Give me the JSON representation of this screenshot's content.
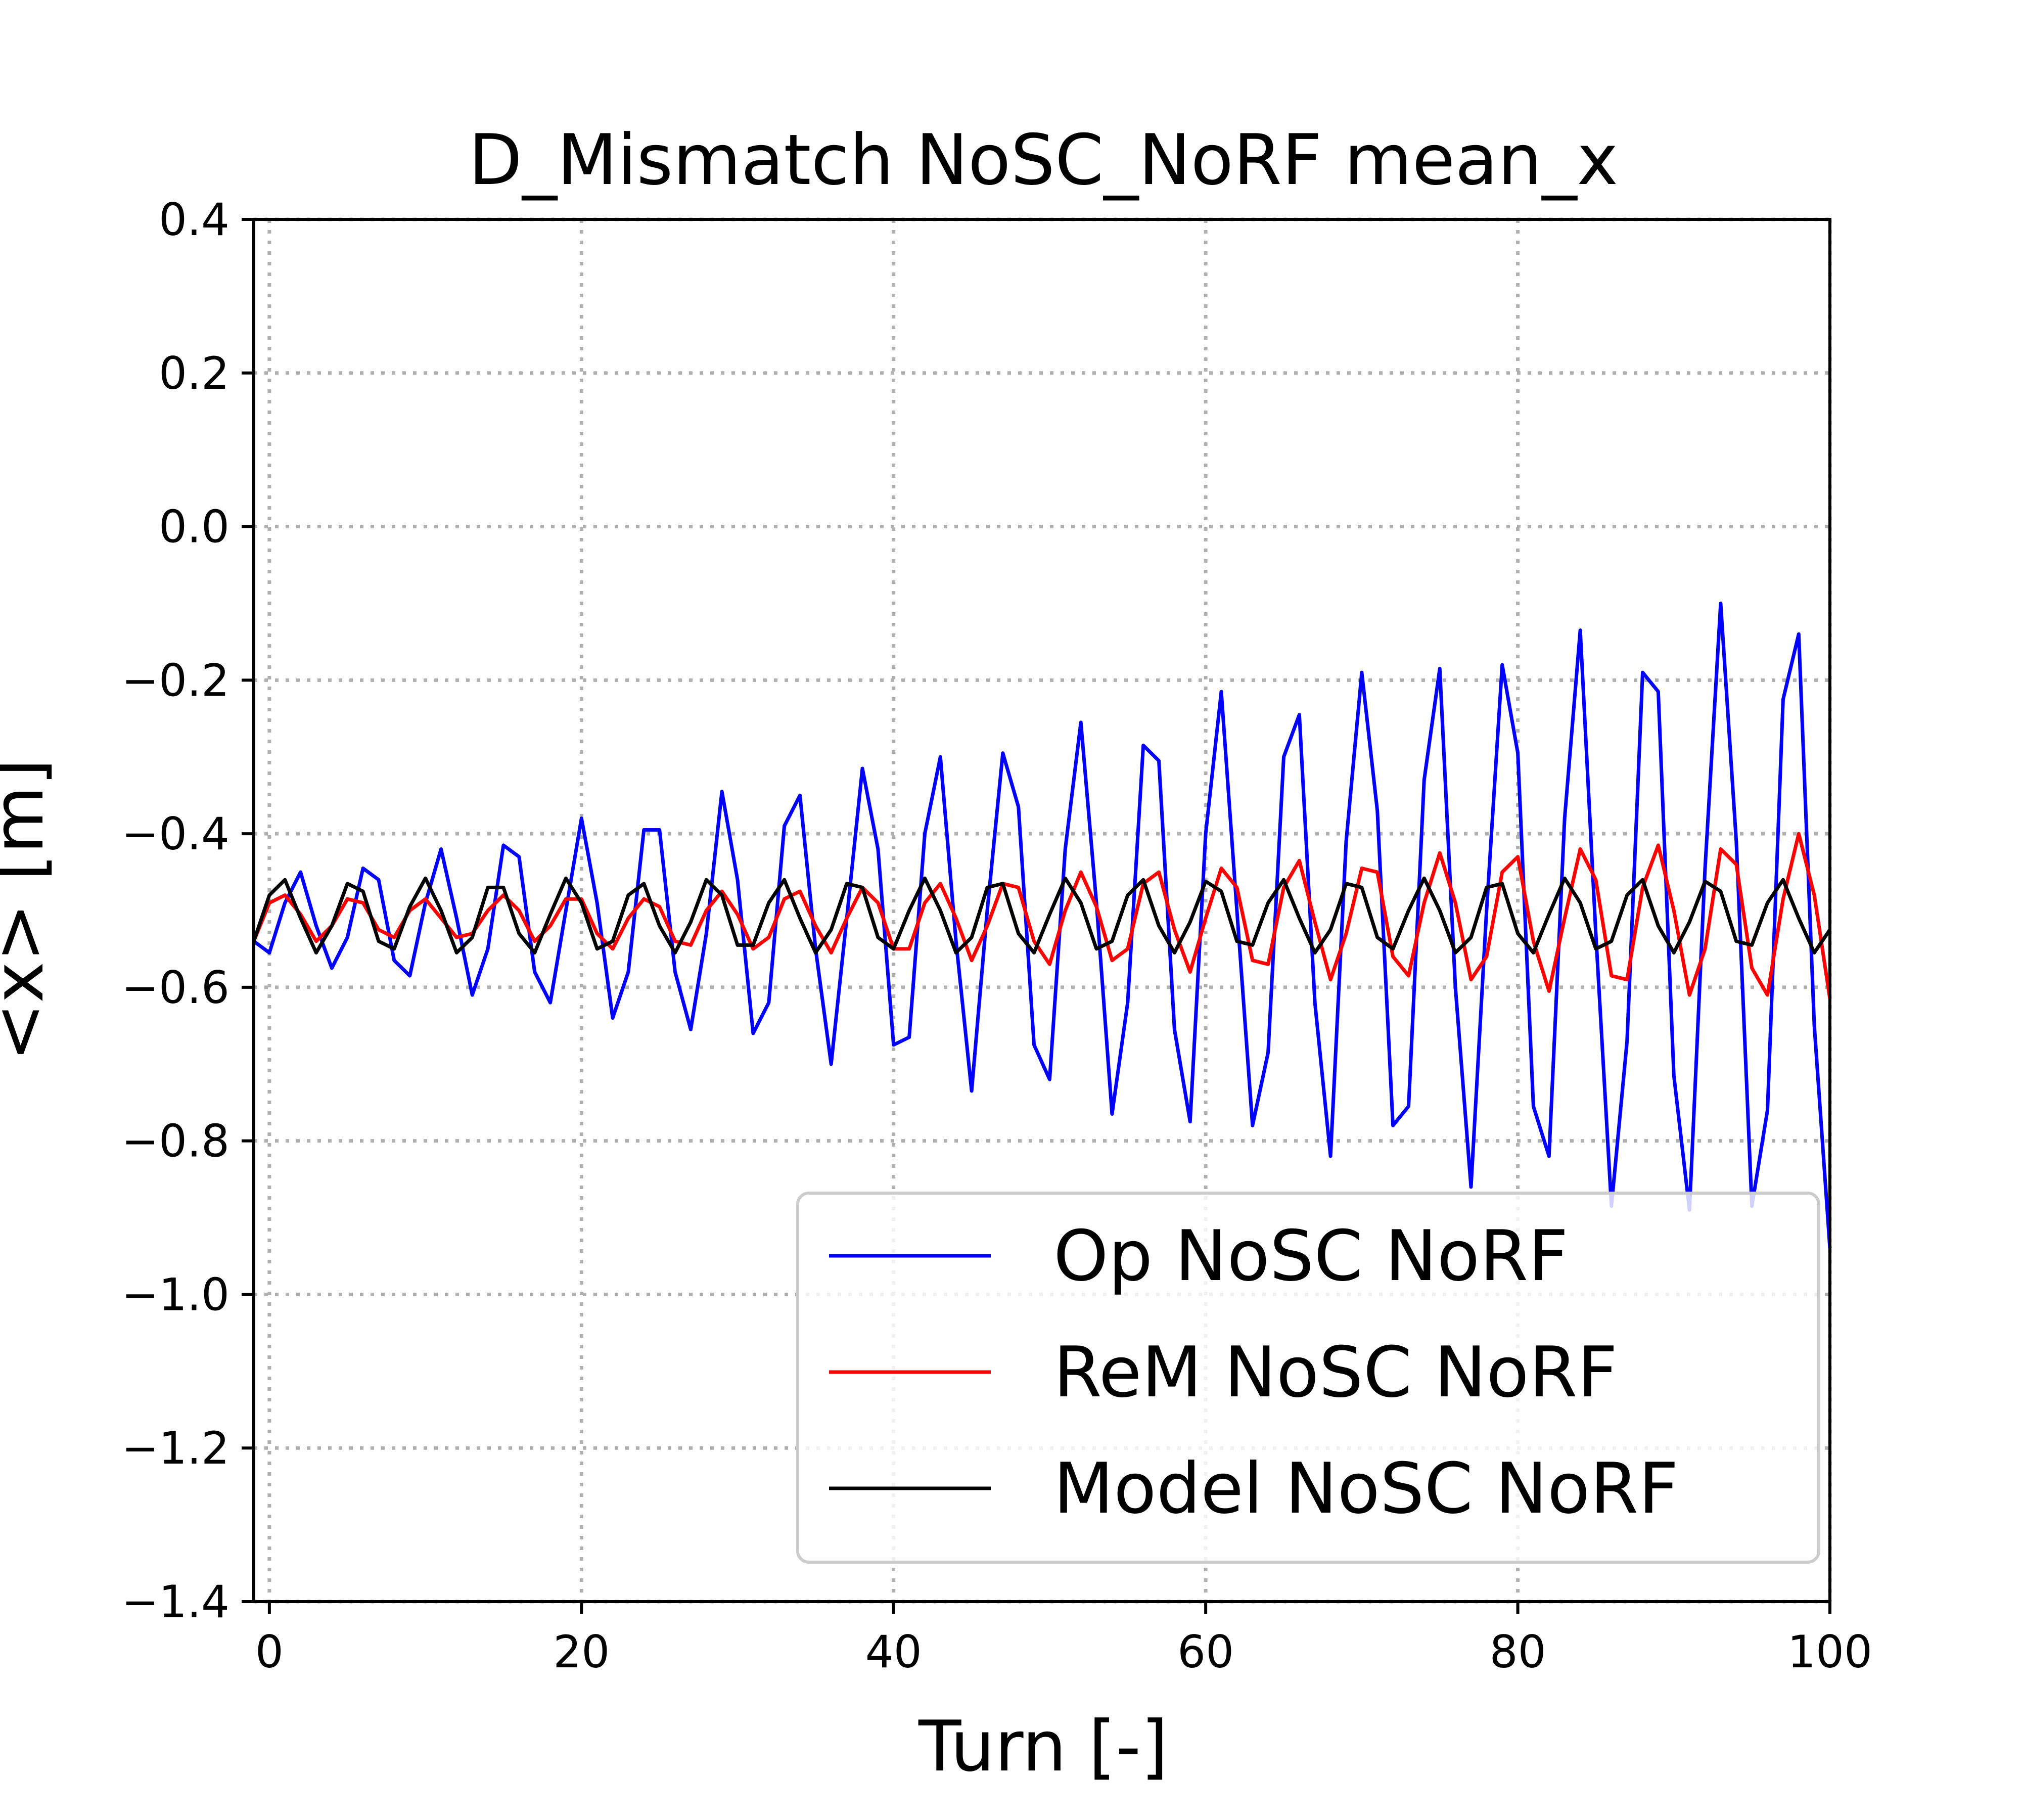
{
  "chart_data": {
    "type": "line",
    "title": "D_Mismatch NoSC_NoRF mean_x",
    "xlabel": "Turn [-]",
    "ylabel": "<x> [m]",
    "xlim": [
      -1,
      100
    ],
    "ylim": [
      -1.4,
      0.4
    ],
    "xticks": [
      0,
      20,
      40,
      60,
      80,
      100
    ],
    "xtick_labels": [
      "0",
      "20",
      "40",
      "60",
      "80",
      "100"
    ],
    "yticks": [
      0.4,
      0.2,
      0.0,
      -0.2,
      -0.4,
      -0.6,
      -0.8,
      -1.0,
      -1.2,
      -1.4
    ],
    "ytick_labels": [
      "0.4",
      "0.2",
      "0.0",
      "−0.2",
      "−0.4",
      "−0.6",
      "−0.8",
      "−1.0",
      "−1.2",
      "−1.4"
    ],
    "grid": true,
    "legend_position": "lower-right",
    "x": [
      -1,
      0,
      1,
      2,
      3,
      4,
      5,
      6,
      7,
      8,
      9,
      10,
      11,
      12,
      13,
      14,
      15,
      16,
      17,
      18,
      19,
      20,
      21,
      22,
      23,
      24,
      25,
      26,
      27,
      28,
      29,
      30,
      31,
      32,
      33,
      34,
      35,
      36,
      37,
      38,
      39,
      40,
      41,
      42,
      43,
      44,
      45,
      46,
      47,
      48,
      49,
      50,
      51,
      52,
      53,
      54,
      55,
      56,
      57,
      58,
      59,
      60,
      61,
      62,
      63,
      64,
      65,
      66,
      67,
      68,
      69,
      70,
      71,
      72,
      73,
      74,
      75,
      76,
      77,
      78,
      79,
      80,
      81,
      82,
      83,
      84,
      85,
      86,
      87,
      88,
      89,
      90,
      91,
      92,
      93,
      94,
      95,
      96,
      97,
      98,
      99,
      100
    ],
    "series": [
      {
        "name": "Op NoSC NoRF",
        "color": "#0000ff",
        "values": [
          -0.54,
          -0.555,
          -0.49,
          -0.45,
          -0.52,
          -0.575,
          -0.535,
          -0.445,
          -0.46,
          -0.565,
          -0.585,
          -0.49,
          -0.42,
          -0.51,
          -0.61,
          -0.55,
          -0.415,
          -0.43,
          -0.58,
          -0.62,
          -0.5,
          -0.38,
          -0.49,
          -0.64,
          -0.58,
          -0.395,
          -0.395,
          -0.58,
          -0.655,
          -0.53,
          -0.345,
          -0.46,
          -0.66,
          -0.62,
          -0.39,
          -0.35,
          -0.55,
          -0.7,
          -0.51,
          -0.315,
          -0.42,
          -0.675,
          -0.665,
          -0.4,
          -0.3,
          -0.54,
          -0.735,
          -0.5,
          -0.295,
          -0.365,
          -0.675,
          -0.72,
          -0.42,
          -0.255,
          -0.49,
          -0.765,
          -0.62,
          -0.285,
          -0.305,
          -0.655,
          -0.775,
          -0.4,
          -0.215,
          -0.5,
          -0.78,
          -0.685,
          -0.3,
          -0.245,
          -0.62,
          -0.82,
          -0.41,
          -0.19,
          -0.37,
          -0.78,
          -0.755,
          -0.33,
          -0.185,
          -0.6,
          -0.86,
          -0.5,
          -0.18,
          -0.295,
          -0.755,
          -0.82,
          -0.38,
          -0.135,
          -0.53,
          -0.885,
          -0.67,
          -0.19,
          -0.215,
          -0.715,
          -0.89,
          -0.445,
          -0.1,
          -0.41,
          -0.885,
          -0.76,
          -0.225,
          -0.14,
          -0.65,
          -0.94
        ]
      },
      {
        "name": "ReM NoSC NoRF",
        "color": "#ff0000",
        "values": [
          -0.54,
          -0.49,
          -0.48,
          -0.505,
          -0.54,
          -0.52,
          -0.485,
          -0.49,
          -0.525,
          -0.535,
          -0.5,
          -0.485,
          -0.51,
          -0.535,
          -0.53,
          -0.5,
          -0.48,
          -0.5,
          -0.54,
          -0.52,
          -0.485,
          -0.485,
          -0.53,
          -0.55,
          -0.51,
          -0.485,
          -0.495,
          -0.54,
          -0.545,
          -0.5,
          -0.475,
          -0.505,
          -0.55,
          -0.535,
          -0.485,
          -0.475,
          -0.52,
          -0.555,
          -0.51,
          -0.47,
          -0.49,
          -0.55,
          -0.55,
          -0.49,
          -0.465,
          -0.51,
          -0.565,
          -0.52,
          -0.465,
          -0.47,
          -0.54,
          -0.57,
          -0.5,
          -0.45,
          -0.495,
          -0.565,
          -0.55,
          -0.465,
          -0.45,
          -0.525,
          -0.58,
          -0.51,
          -0.445,
          -0.47,
          -0.565,
          -0.57,
          -0.47,
          -0.435,
          -0.515,
          -0.59,
          -0.53,
          -0.445,
          -0.45,
          -0.56,
          -0.585,
          -0.49,
          -0.425,
          -0.49,
          -0.59,
          -0.56,
          -0.45,
          -0.43,
          -0.54,
          -0.605,
          -0.51,
          -0.42,
          -0.46,
          -0.585,
          -0.59,
          -0.47,
          -0.415,
          -0.5,
          -0.61,
          -0.55,
          -0.42,
          -0.44,
          -0.575,
          -0.61,
          -0.485,
          -0.4,
          -0.48,
          -0.615
        ]
      },
      {
        "name": "Model NoSC NoRF",
        "color": "#000000",
        "values": [
          -0.54,
          -0.48,
          -0.46,
          -0.51,
          -0.555,
          -0.52,
          -0.465,
          -0.475,
          -0.54,
          -0.55,
          -0.495,
          -0.458,
          -0.5,
          -0.555,
          -0.535,
          -0.47,
          -0.47,
          -0.53,
          -0.555,
          -0.505,
          -0.458,
          -0.49,
          -0.55,
          -0.54,
          -0.48,
          -0.465,
          -0.52,
          -0.555,
          -0.515,
          -0.46,
          -0.48,
          -0.545,
          -0.545,
          -0.49,
          -0.46,
          -0.51,
          -0.555,
          -0.525,
          -0.465,
          -0.47,
          -0.535,
          -0.55,
          -0.5,
          -0.458,
          -0.5,
          -0.555,
          -0.535,
          -0.47,
          -0.465,
          -0.53,
          -0.555,
          -0.505,
          -0.458,
          -0.49,
          -0.55,
          -0.54,
          -0.48,
          -0.46,
          -0.52,
          -0.555,
          -0.515,
          -0.462,
          -0.475,
          -0.54,
          -0.545,
          -0.49,
          -0.46,
          -0.51,
          -0.555,
          -0.525,
          -0.465,
          -0.47,
          -0.535,
          -0.55,
          -0.5,
          -0.458,
          -0.5,
          -0.555,
          -0.535,
          -0.47,
          -0.465,
          -0.53,
          -0.555,
          -0.505,
          -0.458,
          -0.49,
          -0.55,
          -0.54,
          -0.48,
          -0.46,
          -0.52,
          -0.555,
          -0.515,
          -0.462,
          -0.475,
          -0.54,
          -0.545,
          -0.49,
          -0.46,
          -0.51,
          -0.555,
          -0.525
        ]
      }
    ]
  }
}
